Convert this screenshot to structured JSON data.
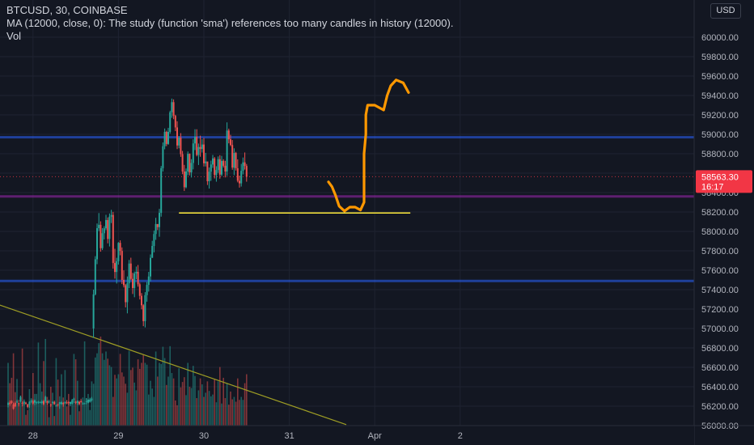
{
  "header": {
    "symbol_line": "BTCUSD, 30, COINBASE",
    "ma_line": "MA (12000, close, 0): The study (function 'sma') references too many candles in history (12000).",
    "vol_label": "Vol"
  },
  "currency_button": "USD",
  "price_tag": {
    "price": "58563.30",
    "countdown": "16:17",
    "color": "#f23645"
  },
  "colors": {
    "background": "#131722",
    "up": "#26a69a",
    "down": "#ef5350",
    "hline_blue": "#2962ff",
    "hline_purple": "#9c27b0",
    "support_line": "#ffeb3b",
    "trend_line": "#9e9d24",
    "drawing": "#ff9800"
  },
  "chart_data": {
    "type": "candlestick",
    "symbol": "BTCUSD",
    "timeframe": "30",
    "exchange": "COINBASE",
    "ylim": [
      56000,
      60600
    ],
    "y_ticks": [
      "56000.00",
      "56200.00",
      "56400.00",
      "56600.00",
      "56800.00",
      "57000.00",
      "57200.00",
      "57400.00",
      "57600.00",
      "57800.00",
      "58000.00",
      "58200.00",
      "58400.00",
      "58600.00",
      "58800.00",
      "59000.00",
      "59200.00",
      "59400.00",
      "59600.00",
      "59800.00",
      "60000.00"
    ],
    "x_ticks": [
      {
        "label": "28",
        "t": 14
      },
      {
        "label": "29",
        "t": 62
      },
      {
        "label": "30",
        "t": 110
      },
      {
        "label": "31",
        "t": 158
      },
      {
        "label": "Apr",
        "t": 206
      },
      {
        "label": "2",
        "t": 254
      }
    ],
    "last_price": 58563.3,
    "horizontal_lines": [
      {
        "price": 58970,
        "color": "blue"
      },
      {
        "price": 58360,
        "color": "purple"
      },
      {
        "price": 57490,
        "color": "blue"
      }
    ],
    "support_line": {
      "price": 58190,
      "t_start": 96,
      "t_end": 226
    },
    "trend_line": {
      "t1": -25,
      "p1": 57370,
      "t2": 190,
      "p2": 56010
    },
    "drawing_path": [
      [
        180,
        58510
      ],
      [
        182,
        58460
      ],
      [
        184,
        58370
      ],
      [
        186,
        58260
      ],
      [
        189,
        58210
      ],
      [
        192,
        58250
      ],
      [
        195,
        58250
      ],
      [
        198,
        58220
      ],
      [
        200,
        58300
      ],
      [
        200,
        58630
      ],
      [
        200,
        58800
      ],
      [
        201,
        59000
      ],
      [
        201,
        59200
      ],
      [
        202,
        59300
      ],
      [
        206,
        59300
      ],
      [
        211,
        59250
      ],
      [
        213,
        59400
      ],
      [
        215,
        59500
      ],
      [
        218,
        59560
      ],
      [
        222,
        59530
      ],
      [
        225,
        59430
      ]
    ],
    "candles": [
      [
        56215,
        56244,
        56188,
        56230
      ],
      [
        56237,
        56258,
        56204,
        56221
      ],
      [
        56255,
        56261,
        56223,
        56233
      ],
      [
        56219,
        56237,
        56163,
        56173
      ],
      [
        56233,
        56247,
        56190,
        56198
      ],
      [
        56242,
        56267,
        56234,
        56247
      ],
      [
        56230,
        56233,
        56198,
        56221
      ],
      [
        56249,
        56308,
        56238,
        56292
      ],
      [
        56234,
        56249,
        56198,
        56228
      ],
      [
        56229,
        56256,
        56207,
        56245
      ],
      [
        56235,
        56245,
        56216,
        56233
      ],
      [
        56217,
        56225,
        56179,
        56192
      ],
      [
        56213,
        56251,
        56183,
        56245
      ],
      [
        56246,
        56269,
        56235,
        56254
      ],
      [
        56253,
        56269,
        56212,
        56226
      ],
      [
        56237,
        56270,
        56209,
        56260
      ],
      [
        56238,
        56249,
        56219,
        56243
      ],
      [
        56245,
        56254,
        56224,
        56246
      ],
      [
        56239,
        56248,
        56229,
        56242
      ],
      [
        56233,
        56263,
        56219,
        56249
      ],
      [
        56252,
        56265,
        56207,
        56220
      ],
      [
        56248,
        56308,
        56234,
        56296
      ],
      [
        56252,
        56258,
        56215,
        56233
      ],
      [
        56246,
        56265,
        56227,
        56248
      ],
      [
        56216,
        56225,
        56192,
        56214
      ],
      [
        56237,
        56249,
        56219,
        56244
      ],
      [
        56244,
        56256,
        56213,
        56221
      ],
      [
        56198,
        56216,
        56195,
        56206
      ],
      [
        56218,
        56225,
        56196,
        56215
      ],
      [
        56222,
        56244,
        56173,
        56240
      ],
      [
        56222,
        56253,
        56212,
        56240
      ],
      [
        56234,
        56242,
        56195,
        56220
      ],
      [
        56232,
        56250,
        56221,
        56242
      ],
      [
        56238,
        56262,
        56220,
        56232
      ],
      [
        56242,
        56249,
        56213,
        56235
      ],
      [
        56223,
        56248,
        56201,
        56242
      ],
      [
        56226,
        56275,
        56218,
        56263
      ],
      [
        56265,
        56287,
        56234,
        56277
      ],
      [
        56245,
        56254,
        56221,
        56235
      ],
      [
        56233,
        56258,
        56212,
        56253
      ],
      [
        56244,
        56256,
        56209,
        56222
      ],
      [
        56250,
        56260,
        56236,
        56242
      ],
      [
        56223,
        56242,
        56215,
        56228
      ],
      [
        56228,
        56236,
        56220,
        56230
      ],
      [
        56249,
        56282,
        56219,
        56251
      ],
      [
        56236,
        56270,
        56229,
        56267
      ],
      [
        56245,
        56286,
        56237,
        56269
      ],
      [
        56260,
        56295,
        56247,
        56279
      ],
      [
        57000,
        57400,
        56905,
        57352
      ],
      [
        57352,
        57745,
        57341,
        57713
      ],
      [
        57713,
        58081,
        57662,
        58033
      ],
      [
        58033,
        58189,
        58004,
        58068
      ],
      [
        58068,
        58104,
        57791,
        57827
      ],
      [
        57827,
        58034,
        57808,
        57981
      ],
      [
        57981,
        58054,
        57917,
        58032
      ],
      [
        58032,
        58171,
        58012,
        58117
      ],
      [
        58117,
        58144,
        57877,
        57922
      ],
      [
        57922,
        58185,
        57845,
        58152
      ],
      [
        58152,
        58222,
        58086,
        58169
      ],
      [
        58169,
        58201,
        57616,
        57674
      ],
      [
        57674,
        57821,
        57514,
        57582
      ],
      [
        57582,
        57728,
        57463,
        57693
      ],
      [
        57693,
        57890,
        57658,
        57882
      ],
      [
        57882,
        57908,
        57754,
        57799
      ],
      [
        57799,
        57835,
        57458,
        57500
      ],
      [
        57500,
        57599,
        57423,
        57446
      ],
      [
        57446,
        57460,
        57217,
        57271
      ],
      [
        57271,
        57536,
        57156,
        57465
      ],
      [
        57465,
        57706,
        57416,
        57669
      ],
      [
        57669,
        57729,
        57498,
        57511
      ],
      [
        57511,
        57573,
        57355,
        57417
      ],
      [
        57417,
        57586,
        57322,
        57567
      ],
      [
        57567,
        57638,
        57508,
        57584
      ],
      [
        57584,
        57654,
        57431,
        57455
      ],
      [
        57455,
        57472,
        57299,
        57336
      ],
      [
        57336,
        57365,
        57198,
        57239
      ],
      [
        57239,
        57251,
        57024,
        57076
      ],
      [
        57076,
        57374,
        57011,
        57343
      ],
      [
        57343,
        57480,
        57276,
        57449
      ],
      [
        57449,
        57583,
        57380,
        57536
      ],
      [
        57536,
        57763,
        57485,
        57728
      ],
      [
        57728,
        57903,
        57727,
        57850
      ],
      [
        57850,
        58008,
        57784,
        57973
      ],
      [
        57973,
        58140,
        57913,
        58076
      ],
      [
        58076,
        58072,
        58013,
        58044
      ],
      [
        58044,
        58232,
        57945,
        58191
      ],
      [
        58191,
        58674,
        58152,
        58651
      ],
      [
        58651,
        58916,
        58617,
        58877
      ],
      [
        58877,
        59060,
        58846,
        59025
      ],
      [
        59025,
        59037,
        58878,
        58901
      ],
      [
        58901,
        59067,
        58892,
        59025
      ],
      [
        59025,
        59243,
        59007,
        59227
      ],
      [
        59227,
        59368,
        59170,
        59331
      ],
      [
        59331,
        59360,
        59156,
        59190
      ],
      [
        59190,
        59201,
        59033,
        59071
      ],
      [
        59071,
        59134,
        58848,
        58885
      ],
      [
        58885,
        58983,
        58856,
        58966
      ],
      [
        58966,
        59012,
        58768,
        58796
      ],
      [
        58796,
        58829,
        58589,
        58617
      ],
      [
        58617,
        58685,
        58416,
        58455
      ],
      [
        58455,
        58648,
        58444,
        58618
      ],
      [
        58618,
        58823,
        58578,
        58799
      ],
      [
        58799,
        58803,
        58577,
        58608
      ],
      [
        58608,
        58744,
        58555,
        58705
      ],
      [
        58705,
        58949,
        58639,
        58906
      ],
      [
        58906,
        59052,
        58837,
        58974
      ],
      [
        58974,
        59052,
        58773,
        58787
      ],
      [
        58787,
        58905,
        58684,
        58869
      ],
      [
        58869,
        58986,
        58769,
        58849
      ],
      [
        58849,
        58950,
        58812,
        58895
      ],
      [
        58895,
        58964,
        58669,
        58702
      ],
      [
        58702,
        58809,
        58669,
        58720
      ],
      [
        58720,
        58716,
        58478,
        58517
      ],
      [
        58517,
        58658,
        58441,
        58615
      ],
      [
        58615,
        58729,
        58521,
        58689
      ],
      [
        58689,
        58788,
        58654,
        58752
      ],
      [
        58752,
        58766,
        58545,
        58581
      ],
      [
        58581,
        58671,
        58512,
        58632
      ],
      [
        58632,
        58772,
        58603,
        58744
      ],
      [
        58744,
        58785,
        58543,
        58585
      ],
      [
        58585,
        58778,
        58569,
        58726
      ],
      [
        58726,
        58743,
        58658,
        58676
      ],
      [
        58676,
        58727,
        58556,
        58617
      ],
      [
        58617,
        59123,
        58573,
        59039
      ],
      [
        59039,
        59058,
        58907,
        58949
      ],
      [
        58949,
        58995,
        58878,
        58890
      ],
      [
        58890,
        58941,
        58635,
        58657
      ],
      [
        58657,
        58856,
        58579,
        58808
      ],
      [
        58808,
        58819,
        58627,
        58650
      ],
      [
        58650,
        58742,
        58505,
        58521
      ],
      [
        58521,
        58574,
        58451,
        58495
      ],
      [
        58495,
        58695,
        58462,
        58624
      ],
      [
        58624,
        58761,
        58587,
        58711
      ],
      [
        58711,
        58813,
        58637,
        58674
      ],
      [
        58674,
        58694,
        58512,
        58563
      ]
    ],
    "volumes": [
      105,
      71,
      80,
      121,
      56,
      78,
      43,
      50,
      129,
      44,
      18,
      26,
      61,
      46,
      88,
      53,
      53,
      139,
      71,
      57,
      108,
      145,
      48,
      14,
      65,
      55,
      16,
      113,
      77,
      49,
      86,
      47,
      93,
      32,
      53,
      18,
      40,
      120,
      111,
      75,
      24,
      45,
      47,
      141,
      46,
      53,
      26,
      74,
      70,
      114,
      121,
      138,
      149,
      121,
      110,
      124,
      112,
      101,
      98,
      48,
      85,
      79,
      86,
      120,
      89,
      82,
      70,
      55,
      125,
      93,
      97,
      72,
      59,
      111,
      95,
      105,
      118,
      105,
      102,
      52,
      75,
      62,
      48,
      124,
      82,
      105,
      103,
      132,
      113,
      68,
      82,
      133,
      88,
      79,
      42,
      34,
      96,
      64,
      73,
      81,
      51,
      105,
      65,
      63,
      100,
      83,
      46,
      59,
      79,
      69,
      48,
      55,
      74,
      58,
      49,
      52,
      78,
      39,
      74,
      98,
      37,
      80,
      46,
      71,
      35,
      57,
      44,
      48,
      40,
      79,
      43,
      48,
      43,
      71,
      86,
      25
    ]
  }
}
